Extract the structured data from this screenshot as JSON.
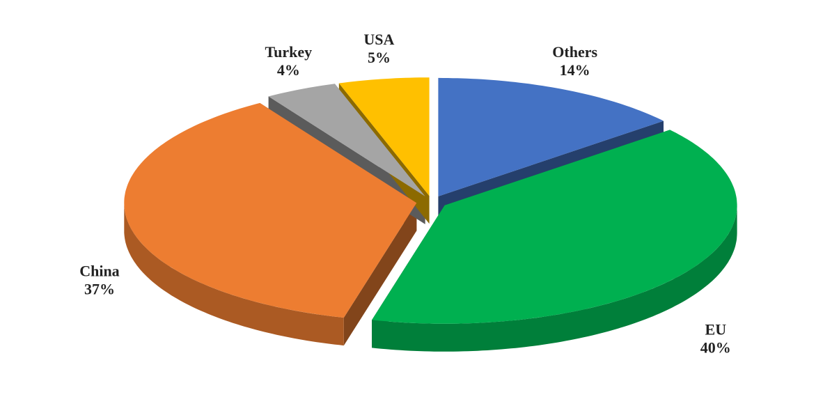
{
  "chart_data": {
    "type": "pie",
    "categories": [
      "Others",
      "EU",
      "China",
      "Turkey",
      "USA"
    ],
    "values": [
      14,
      40,
      37,
      4,
      5
    ],
    "value_labels": [
      "14%",
      "40%",
      "37%",
      "4%",
      "5%"
    ],
    "colors": [
      "#4472c4",
      "#00b050",
      "#ed7d31",
      "#a5a5a5",
      "#ffc000"
    ],
    "exploded": true,
    "three_d": true
  }
}
